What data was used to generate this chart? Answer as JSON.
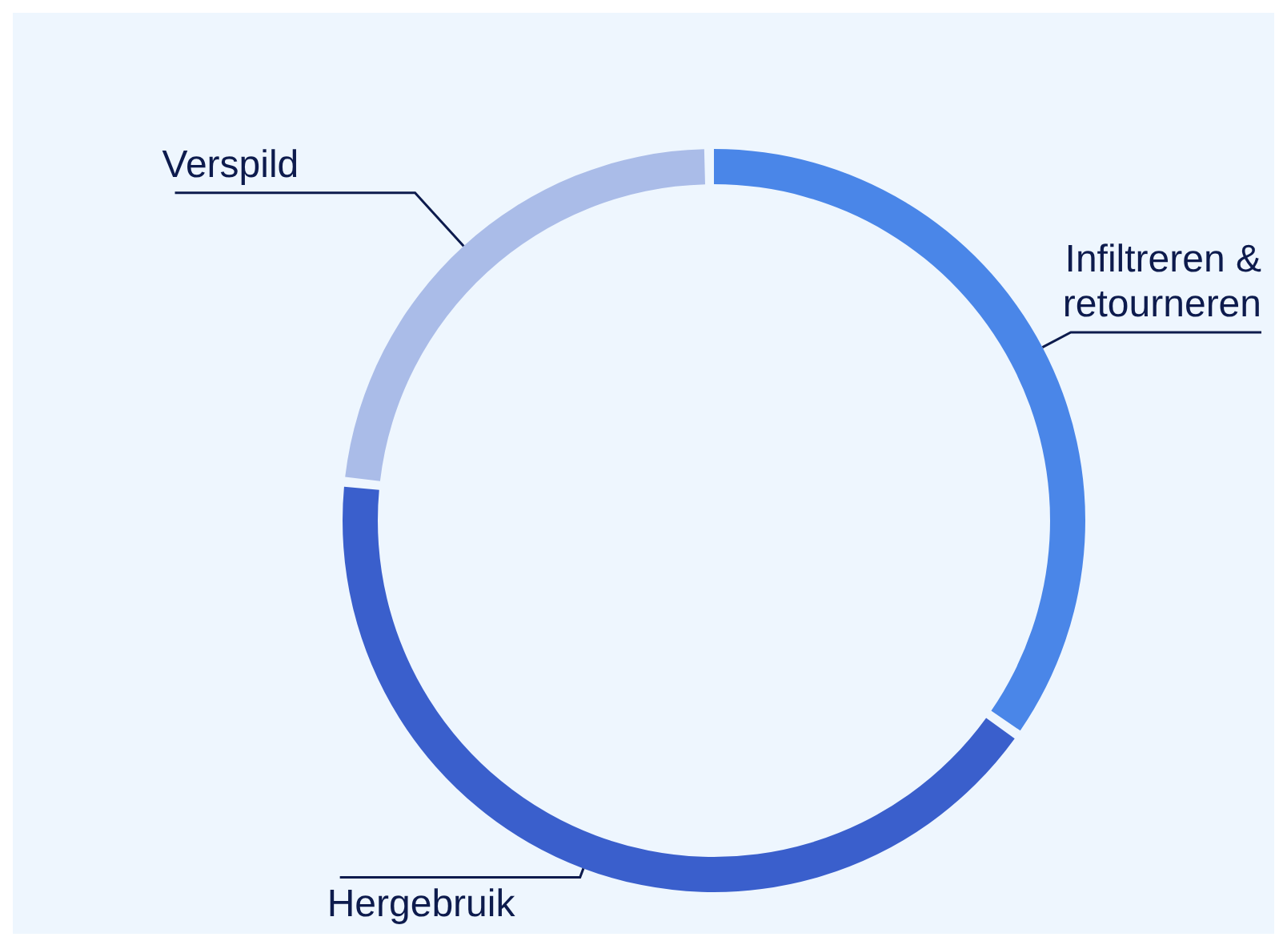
{
  "chart_data": {
    "type": "donut",
    "categories": [
      "Infiltreren & retourneren",
      "Hergebruik",
      "Verspild"
    ],
    "values": [
      35,
      42,
      23
    ],
    "colors": [
      "#4a86e8",
      "#3a5fcc",
      "#aabce8"
    ]
  }
}
